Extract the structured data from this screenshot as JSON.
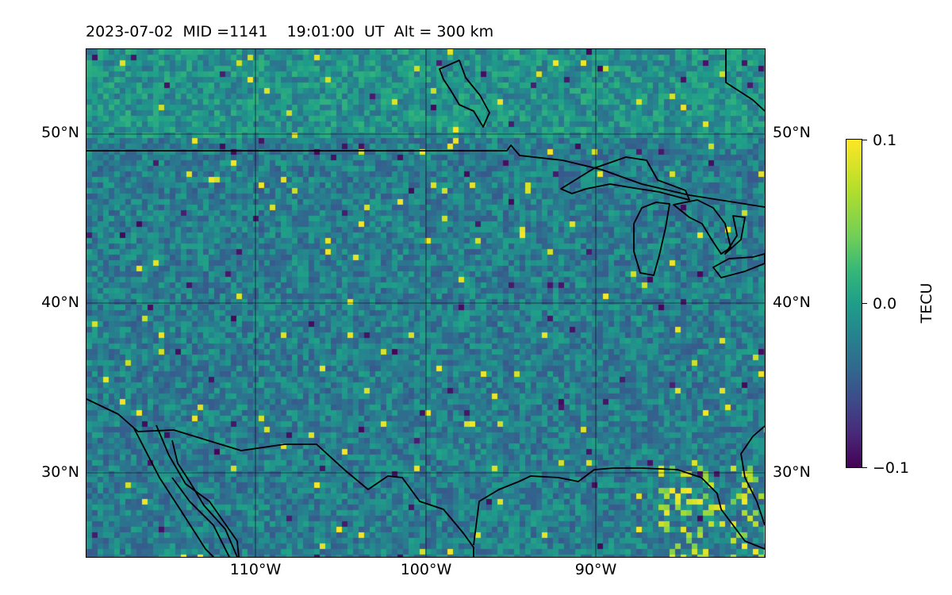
{
  "map": {
    "title": "2023-07-02  MID =1141    19:01:00  UT  Alt = 300 km",
    "lat_labels": [
      "50°N",
      "40°N",
      "30°N"
    ],
    "lon_labels": [
      "110°W",
      "100°W",
      "90°W"
    ],
    "colorbar": {
      "label": "TECU",
      "tick_labels": [
        "0.1",
        "0.0",
        "−0.1"
      ],
      "min": -0.1,
      "max": 0.1,
      "colormap": "viridis"
    },
    "extent": {
      "lon_min": -120,
      "lon_max": -80,
      "lat_min": 25,
      "lat_max": 55
    },
    "gridlines": {
      "lats": [
        50,
        40,
        30
      ],
      "lons": [
        -110,
        -100,
        -90
      ]
    },
    "colors": {
      "coastline": "#000000",
      "gridline": "#000000"
    }
  }
}
